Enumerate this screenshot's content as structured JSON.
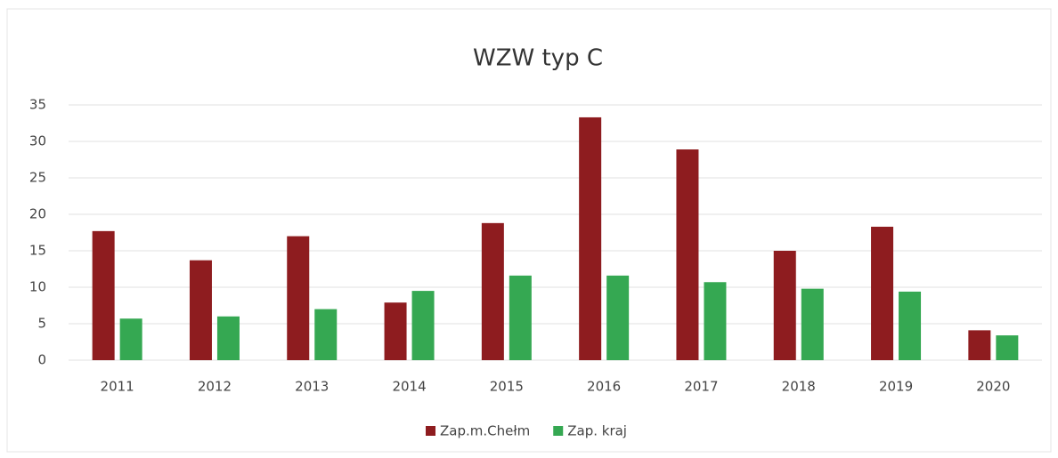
{
  "chart_data": {
    "type": "bar",
    "title": "WZW typ C",
    "categories": [
      "2011",
      "2012",
      "2013",
      "2014",
      "2015",
      "2016",
      "2017",
      "2018",
      "2019",
      "2020"
    ],
    "series": [
      {
        "name": "Zap.m.Chełm",
        "color": "#8e1c1f",
        "values": [
          17.7,
          13.7,
          17.0,
          7.9,
          18.8,
          33.3,
          28.9,
          15.0,
          18.3,
          4.1
        ]
      },
      {
        "name": "Zap. kraj",
        "color": "#35a852",
        "values": [
          5.7,
          6.0,
          7.0,
          9.5,
          11.6,
          11.6,
          10.7,
          9.8,
          9.4,
          3.4
        ]
      }
    ],
    "ylim": [
      0,
      35
    ],
    "yticks": [
      0,
      5,
      10,
      15,
      20,
      25,
      30,
      35
    ],
    "grid": true,
    "legend": "bottom"
  }
}
